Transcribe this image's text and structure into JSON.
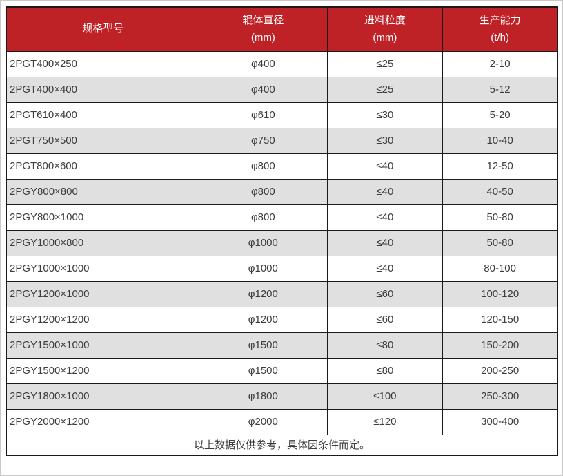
{
  "colors": {
    "header_bg": "#be2227",
    "header_text": "#ffffff",
    "row_alt_bg": "#e0e0e0",
    "border": "#1a1a1a",
    "body_text": "#3d3d3d"
  },
  "table": {
    "columns": [
      {
        "label": "规格型号",
        "unit": ""
      },
      {
        "label": "辊体直径",
        "unit": "(mm)"
      },
      {
        "label": "进料粒度",
        "unit": "(mm)"
      },
      {
        "label": "生产能力",
        "unit": "(t/h)"
      }
    ],
    "rows": [
      [
        "2PGT400×250",
        "φ400",
        "≤25",
        "2-10"
      ],
      [
        "2PGT400×400",
        "φ400",
        "≤25",
        "5-12"
      ],
      [
        "2PGT610×400",
        "φ610",
        "≤30",
        "5-20"
      ],
      [
        "2PGT750×500",
        "φ750",
        "≤30",
        "10-40"
      ],
      [
        "2PGT800×600",
        "φ800",
        "≤40",
        "12-50"
      ],
      [
        "2PGY800×800",
        "φ800",
        "≤40",
        "40-50"
      ],
      [
        "2PGY800×1000",
        "φ800",
        "≤40",
        "50-80"
      ],
      [
        "2PGY1000×800",
        "φ1000",
        "≤40",
        "50-80"
      ],
      [
        "2PGY1000×1000",
        "φ1000",
        "≤40",
        "80-100"
      ],
      [
        "2PGY1200×1000",
        "φ1200",
        "≤60",
        "100-120"
      ],
      [
        "2PGY1200×1200",
        "φ1200",
        "≤60",
        "120-150"
      ],
      [
        "2PGY1500×1000",
        "φ1500",
        "≤80",
        "150-200"
      ],
      [
        "2PGY1500×1200",
        "φ1500",
        "≤80",
        "200-250"
      ],
      [
        "2PGY1800×1000",
        "φ1800",
        "≤100",
        "250-300"
      ],
      [
        "2PGY2000×1200",
        "φ2000",
        "≤120",
        "300-400"
      ]
    ],
    "footer_note": "以上数据仅供参考，具体因条件而定。"
  }
}
